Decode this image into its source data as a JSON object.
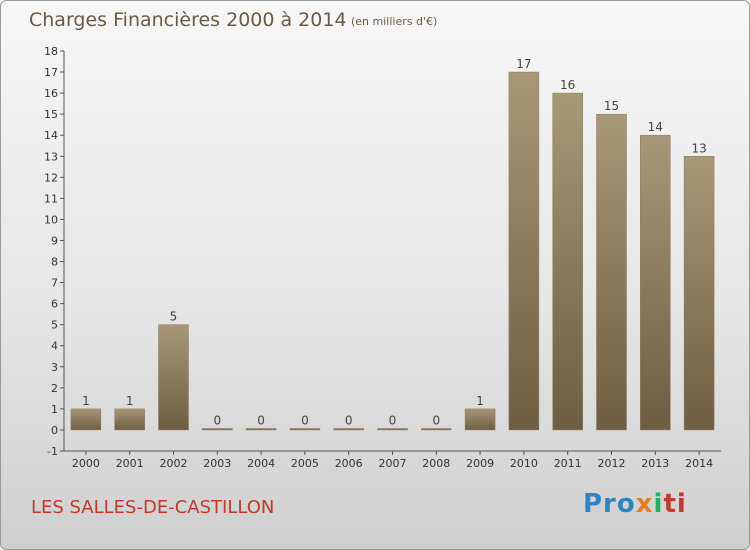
{
  "header": {
    "title": "Charges Financières 2000 à 2014",
    "unit": "(en milliers d'€)"
  },
  "footer": {
    "commune": "LES SALLES-DE-CASTILLON",
    "logo": [
      "Pro",
      "x",
      "i",
      "ti"
    ]
  },
  "colors": {
    "bar_top": "#a89878",
    "bar_bottom": "#6e5d42",
    "title": "#6b5a45",
    "commune": "#c0392b"
  },
  "chart_data": {
    "type": "bar",
    "title": "Charges Financières 2000 à 2014",
    "subtitle": "(en milliers d'€)",
    "xlabel": "",
    "ylabel": "",
    "ylim": [
      -1,
      18
    ],
    "yticks": [
      -1,
      0,
      1,
      2,
      3,
      4,
      5,
      6,
      7,
      8,
      9,
      10,
      11,
      12,
      13,
      14,
      15,
      16,
      17,
      18
    ],
    "grid": false,
    "categories": [
      "2000",
      "2001",
      "2002",
      "2003",
      "2004",
      "2005",
      "2006",
      "2007",
      "2008",
      "2009",
      "2010",
      "2011",
      "2012",
      "2013",
      "2014"
    ],
    "values": [
      1,
      1,
      5,
      0,
      0,
      0,
      0,
      0,
      0,
      1,
      17,
      16,
      15,
      14,
      13
    ]
  }
}
